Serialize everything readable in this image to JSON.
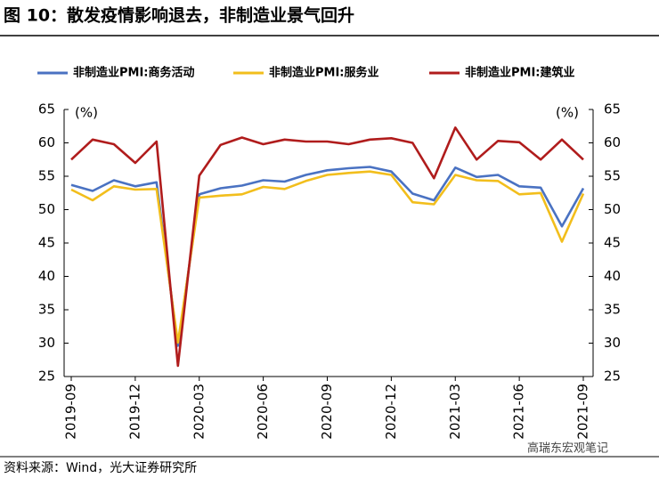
{
  "chart_data": {
    "type": "line",
    "title": "图 10：散发疫情影响退去，非制造业景气回升",
    "source": "资料来源：Wind，光大证券研究所",
    "watermark": "高瑞东宏观笔记",
    "y_unit": "(%)",
    "y2_unit": "(%)",
    "categories": [
      "2019-09",
      null,
      null,
      "2019-12",
      null,
      null,
      "2020-03",
      null,
      null,
      "2020-06",
      null,
      null,
      "2020-09",
      null,
      null,
      "2020-12",
      null,
      null,
      "2021-03",
      null,
      null,
      "2021-06",
      null,
      null,
      "2021-09"
    ],
    "ylim": [
      25,
      65
    ],
    "yticks": [
      25,
      30,
      35,
      40,
      45,
      50,
      55,
      60,
      65
    ],
    "y2lim": [
      25,
      65
    ],
    "y2ticks": [
      25,
      30,
      35,
      40,
      45,
      50,
      55,
      60,
      65
    ],
    "legend": "top",
    "series": [
      {
        "name": "非制造业PMI:商务活动",
        "color": "#4a72c2",
        "values": [
          53.7,
          52.8,
          54.4,
          53.5,
          54.1,
          29.6,
          52.3,
          53.2,
          53.6,
          54.4,
          54.2,
          55.2,
          55.9,
          56.2,
          56.4,
          55.7,
          52.4,
          51.4,
          56.3,
          54.9,
          55.2,
          53.5,
          53.3,
          47.5,
          53.2
        ]
      },
      {
        "name": "非制造业PMI:服务业",
        "color": "#f2be1c",
        "values": [
          53.0,
          51.4,
          53.5,
          53.0,
          53.1,
          30.1,
          51.8,
          52.1,
          52.3,
          53.4,
          53.1,
          54.3,
          55.2,
          55.5,
          55.7,
          55.2,
          51.1,
          50.8,
          55.2,
          54.4,
          54.3,
          52.3,
          52.5,
          45.2,
          52.4
        ]
      },
      {
        "name": "非制造业PMI:建筑业",
        "color": "#b01c1c",
        "values": [
          57.5,
          60.5,
          59.8,
          57.0,
          60.2,
          26.6,
          55.1,
          59.7,
          60.8,
          59.8,
          60.5,
          60.2,
          60.2,
          59.8,
          60.5,
          60.7,
          60.0,
          54.7,
          62.3,
          57.5,
          60.3,
          60.1,
          57.5,
          60.5,
          57.5
        ]
      }
    ]
  }
}
